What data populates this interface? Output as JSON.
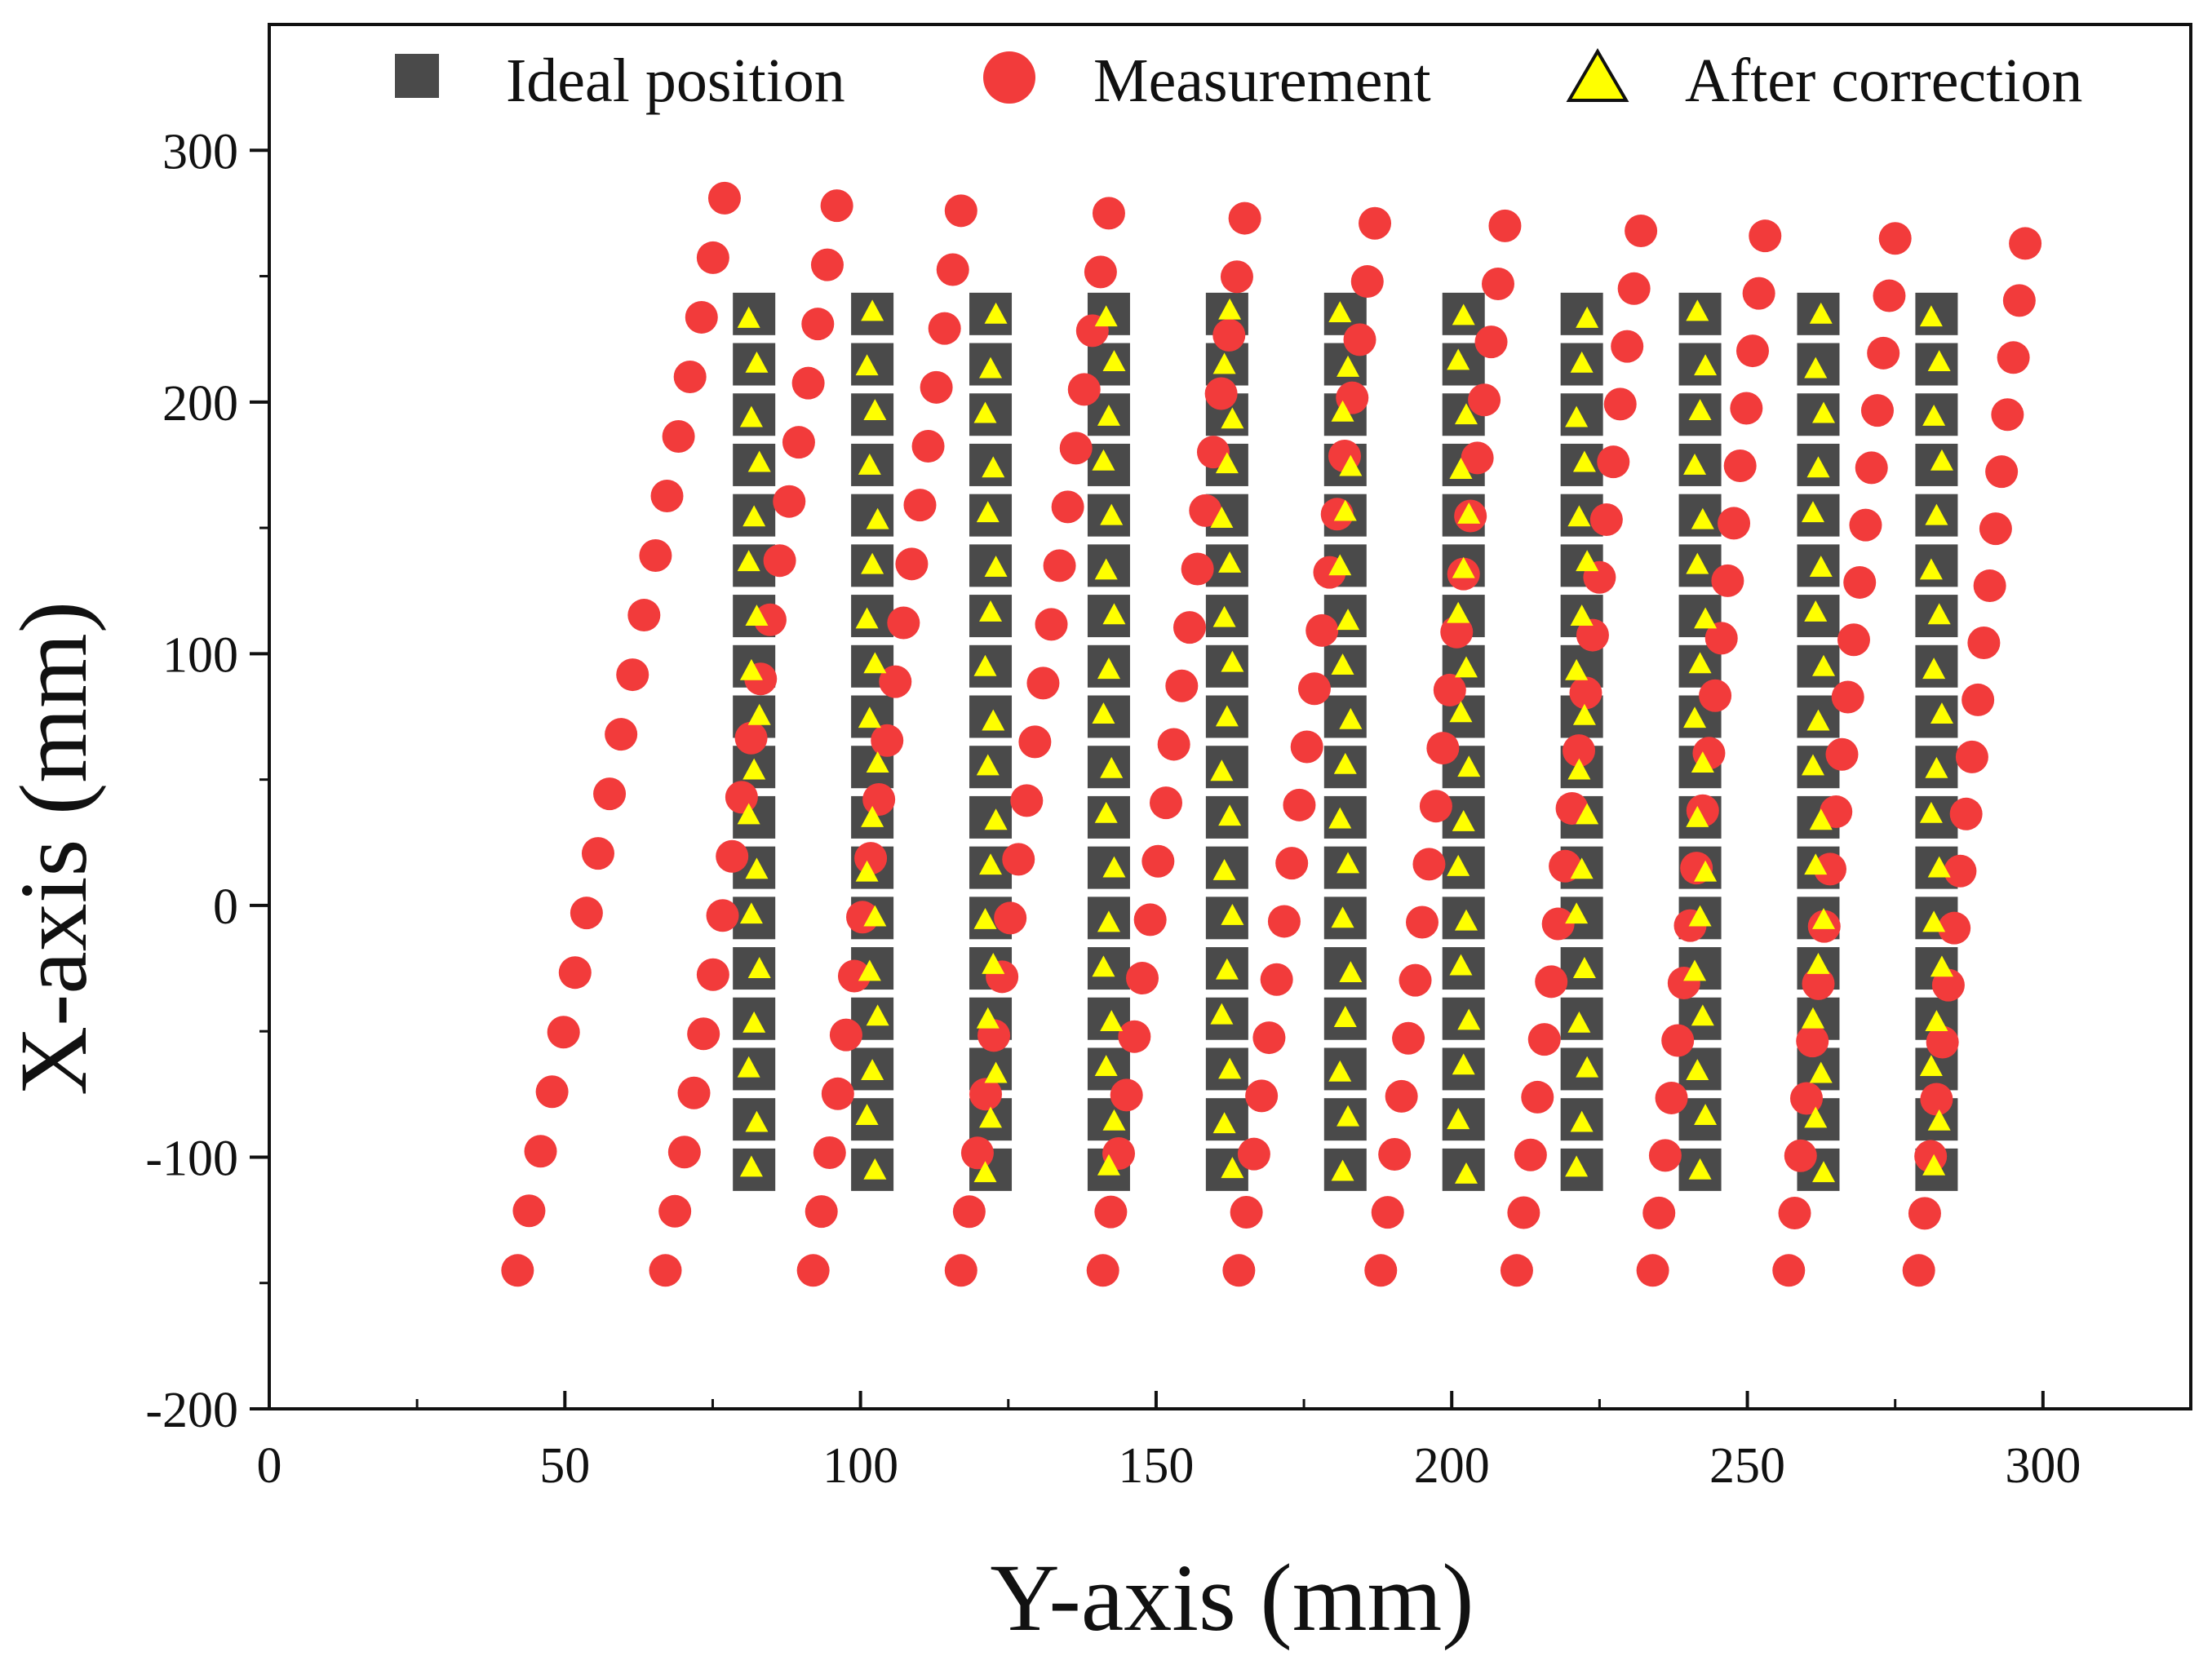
{
  "chart_data": {
    "type": "scatter",
    "title": "",
    "xlabel": "Y-axis (mm)",
    "ylabel": "X-axis (mm)",
    "xlim": [
      0,
      325
    ],
    "ylim": [
      -200,
      350
    ],
    "x_ticks": [
      0,
      50,
      100,
      150,
      200,
      250,
      300
    ],
    "y_ticks": [
      -200,
      -100,
      0,
      100,
      200,
      300
    ],
    "x_tick_labels": [
      "0",
      "50",
      "100",
      "150",
      "200",
      "250",
      "300"
    ],
    "y_tick_labels": [
      "-200",
      "-100",
      "0",
      "100",
      "200",
      "300"
    ],
    "grid": false,
    "legend_position": "top",
    "colors": {
      "ideal": "#4a4a4a",
      "measurement": "#f23b3b",
      "after_correction": "#ffff00"
    },
    "series": [
      {
        "name": "Ideal position",
        "marker": "square",
        "columns_x": [
          82,
          102,
          122,
          142,
          162,
          182,
          202,
          222,
          242,
          262,
          282
        ],
        "rows_y": [
          235,
          215,
          195,
          175,
          155,
          135,
          115,
          95,
          75,
          55,
          35,
          15,
          -5,
          -25,
          -45,
          -65,
          -85,
          -105
        ]
      },
      {
        "name": "Measurement",
        "marker": "circle",
        "curves": [
          {
            "x_start": 42,
            "y_start": -145,
            "x_peak": 77,
            "y_peak": 281
          },
          {
            "x_start": 67,
            "y_start": -145,
            "x_peak": 96,
            "y_peak": 278
          },
          {
            "x_start": 92,
            "y_start": -145,
            "x_peak": 117,
            "y_peak": 276
          },
          {
            "x_start": 117,
            "y_start": -145,
            "x_peak": 142,
            "y_peak": 275
          },
          {
            "x_start": 141,
            "y_start": -145,
            "x_peak": 165,
            "y_peak": 273
          },
          {
            "x_start": 164,
            "y_start": -145,
            "x_peak": 187,
            "y_peak": 271
          },
          {
            "x_start": 188,
            "y_start": -145,
            "x_peak": 209,
            "y_peak": 270
          },
          {
            "x_start": 211,
            "y_start": -145,
            "x_peak": 232,
            "y_peak": 268
          },
          {
            "x_start": 234,
            "y_start": -145,
            "x_peak": 253,
            "y_peak": 266
          },
          {
            "x_start": 257,
            "y_start": -145,
            "x_peak": 275,
            "y_peak": 265
          },
          {
            "x_start": 279,
            "y_start": -145,
            "x_peak": 297,
            "y_peak": 263
          }
        ],
        "points_per_curve": 19
      },
      {
        "name": "After correction",
        "marker": "triangle",
        "note_offsets_mm": 1.0
      }
    ]
  }
}
